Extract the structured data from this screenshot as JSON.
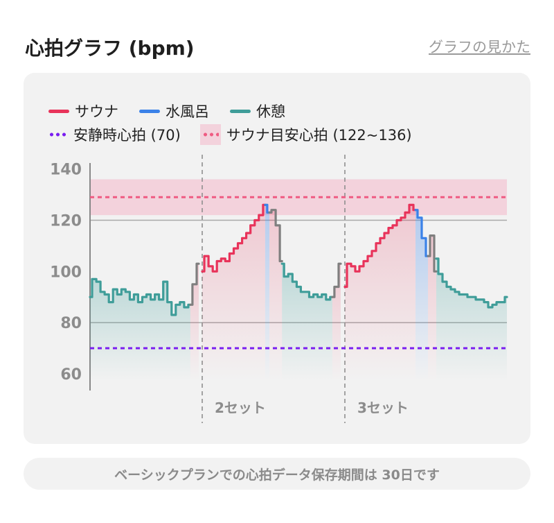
{
  "header": {
    "title": "心拍グラフ (bpm)",
    "help_link": "グラフの見かた"
  },
  "legend": {
    "sauna": "サウナ",
    "cold_bath": "水風呂",
    "rest": "休憩",
    "resting_hr": "安静時心拍 (70)",
    "sauna_target": "サウナ目安心拍 (122~136)"
  },
  "colors": {
    "sauna": "#e8335a",
    "cold_bath": "#3b82e8",
    "rest": "#3f9d99",
    "resting_hr": "#7a1ff0",
    "sauna_target": "#ef5b82",
    "target_band": "#f3d2dc",
    "transition": "#7f7f7f"
  },
  "set_labels": [
    "2セット",
    "3セット"
  ],
  "footer": {
    "note": "ベーシックプランでの心拍データ保存期間は 30日です"
  },
  "chart_data": {
    "type": "line",
    "ylim": [
      57,
      141
    ],
    "y_ticks": [
      140,
      120,
      100,
      80,
      60
    ],
    "grid": "horizontal",
    "reference_lines": [
      {
        "name": "安静時心拍 (70)",
        "value": 70,
        "style": "dotted"
      },
      {
        "name": "サウナ目安心拍 (122~136)",
        "range": [
          122,
          136
        ],
        "value": 129,
        "style": "dotted-band"
      }
    ],
    "set_boundaries": [
      "2セット",
      "3セット"
    ],
    "series": [
      {
        "name": "休憩",
        "segment": 1,
        "values": [
          90,
          97,
          96,
          92,
          91,
          88,
          93,
          91,
          93,
          92,
          89,
          91,
          88,
          90,
          91,
          89,
          91,
          89,
          96,
          88,
          83,
          87,
          88,
          86,
          87
        ]
      },
      {
        "name": "transition",
        "segment": 1,
        "values": [
          87,
          95,
          103
        ]
      },
      {
        "name": "サウナ",
        "segment": 2,
        "values": [
          100,
          106,
          102,
          100,
          104,
          105,
          104,
          107,
          109,
          111,
          113,
          115,
          118,
          120,
          122,
          126
        ]
      },
      {
        "name": "水風呂",
        "segment": 2,
        "values": [
          126,
          123
        ]
      },
      {
        "name": "transition",
        "segment": 2,
        "values": [
          123,
          124,
          118,
          104
        ]
      },
      {
        "name": "休憩",
        "segment": 2,
        "values": [
          103,
          98,
          99,
          96,
          94,
          92,
          92,
          90,
          91,
          90,
          91,
          89,
          90
        ]
      },
      {
        "name": "transition",
        "segment": 2,
        "values": [
          90,
          94,
          103
        ]
      },
      {
        "name": "サウナ",
        "segment": 3,
        "values": [
          94,
          103,
          102,
          100,
          102,
          104,
          106,
          108,
          111,
          113,
          115,
          117,
          118,
          120,
          121,
          123,
          126,
          124
        ]
      },
      {
        "name": "水風呂",
        "segment": 3,
        "values": [
          124,
          121,
          113,
          106
        ]
      },
      {
        "name": "transition",
        "segment": 3,
        "values": [
          106,
          114,
          100
        ]
      },
      {
        "name": "休憩",
        "segment": 3,
        "values": [
          105,
          99,
          96,
          94,
          93,
          92,
          91,
          91,
          90,
          90,
          89,
          89,
          88,
          86,
          87,
          88,
          88,
          90
        ]
      }
    ]
  }
}
